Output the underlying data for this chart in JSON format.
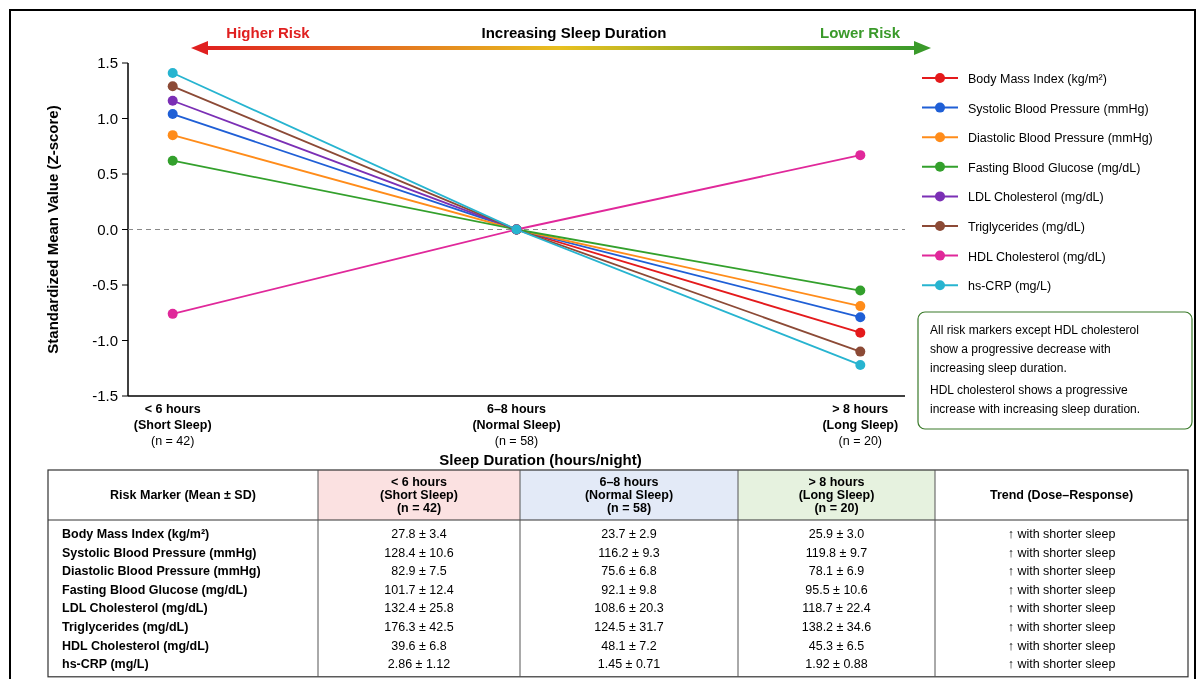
{
  "chart_data": [
    {
      "type": "line",
      "title": "Increasing Sleep Duration",
      "xlabel": "Sleep Duration (hours/night)",
      "ylabel": "Standardized Mean Value (Z-score)",
      "categories": [
        "< 6 hours\n(Short Sleep)\n(n = 42)",
        "6–8 hours\n(Normal Sleep)\n(n = 58)",
        "> 8 hours\n(Long Sleep)\n(n = 20)"
      ],
      "series": [
        {
          "name": "Body Mass Index (kg/m²)",
          "color": "#e41a1c",
          "values": [
            null,
            0,
            -0.93
          ]
        },
        {
          "name": "Systolic Blood Pressure (mmHg)",
          "color": "#1f5fd6",
          "values": [
            1.04,
            0,
            -0.79
          ]
        },
        {
          "name": "Diastolic Blood Pressure (mmHg)",
          "color": "#ff8c1a",
          "values": [
            0.85,
            0,
            -0.69
          ]
        },
        {
          "name": "Fasting Blood Glucose (mg/dL)",
          "color": "#33a02c",
          "values": [
            0.62,
            0,
            -0.55
          ]
        },
        {
          "name": "LDL Cholesterol (mg/dL)",
          "color": "#7b2fb5",
          "values": [
            1.16,
            0,
            null
          ]
        },
        {
          "name": "Triglycerides (mg/dL)",
          "color": "#8c4a36",
          "values": [
            1.29,
            0,
            -1.1
          ]
        },
        {
          "name": "HDL Cholesterol (mg/dL)",
          "color": "#e0289a",
          "values": [
            -0.76,
            0,
            0.67
          ]
        },
        {
          "name": "hs-CRP (mg/L)",
          "color": "#27b4d0",
          "values": [
            1.41,
            0,
            -1.22
          ]
        }
      ],
      "ylim": [
        -1.5,
        1.5
      ],
      "yticks": [
        {
          "value": -1.5,
          "label": "-1.5"
        },
        {
          "value": -1.0,
          "label": "-1.0"
        },
        {
          "value": -0.5,
          "label": "-0.5"
        },
        {
          "value": 0,
          "label": "0.0"
        },
        {
          "value": 0.5,
          "label": "0.5"
        },
        {
          "value": 1.0,
          "label": "1.0"
        },
        {
          "value": 1.5,
          "label": "1.5"
        }
      ],
      "ref_lines": [
        {
          "axis": "y",
          "value": 0,
          "color": "#888888",
          "line_style": "dashed"
        }
      ],
      "grid": false,
      "legend": "right",
      "marker": "circle",
      "line_style": "solid",
      "annotations": [
        "Higher Risk",
        "Lower Risk",
        "All risk markers except HDL cholesterol show a progressive decrease with increasing sleep duration.",
        "HDL cholesterol shows a progressive increase with increasing sleep duration."
      ]
    },
    {
      "type": "other",
      "ylabel": "Risk Marker (Mean ± SD)",
      "categories": [
        "< 6 hours\n(Short Sleep)\n(n = 42)",
        "6–8 hours\n(Normal Sleep)\n(n = 58)",
        "> 8 hours\n(Long Sleep)\n(n = 20)",
        "Trend (Dose–Response)"
      ],
      "colors": [
        "#fbe1e1",
        "#e3eaf7",
        "#e6f2df",
        "#ffffff"
      ],
      "y_categories": [
        "Body Mass Index (kg/m²)",
        "Systolic Blood Pressure (mmHg)",
        "Diastolic Blood Pressure (mmHg)",
        "Fasting Blood Glucose (mg/dL)",
        "LDL Cholesterol (mg/dL)",
        "Triglycerides (mg/dL)",
        "HDL Cholesterol (mg/dL)",
        "hs-CRP (mg/L)"
      ],
      "cell_labels": [
        [
          "27.8 ± 3.4",
          "23.7 ± 2.9",
          "25.9 ± 3.0",
          "↑ with shorter sleep"
        ],
        [
          "128.4 ± 10.6",
          "116.2 ± 9.3",
          "119.8 ± 9.7",
          "↑ with shorter sleep"
        ],
        [
          "82.9 ± 7.5",
          "75.6 ± 6.8",
          "78.1 ± 6.9",
          "↑ with shorter sleep"
        ],
        [
          "101.7 ± 12.4",
          "92.1 ± 9.8",
          "95.5 ± 10.6",
          "↑ with shorter sleep"
        ],
        [
          "132.4 ± 25.8",
          "108.6 ± 20.3",
          "118.7 ± 22.4",
          "↑ with shorter sleep"
        ],
        [
          "176.3 ± 42.5",
          "124.5 ± 31.7",
          "138.2 ± 34.6",
          "↑ with shorter sleep"
        ],
        [
          "39.6 ± 6.8",
          "48.1 ± 7.2",
          "45.3 ± 6.5",
          "↑ with shorter sleep"
        ],
        [
          "2.86 ± 1.12",
          "1.45 ± 0.71",
          "1.92 ± 0.88",
          "↑ with shorter sleep"
        ]
      ]
    }
  ]
}
